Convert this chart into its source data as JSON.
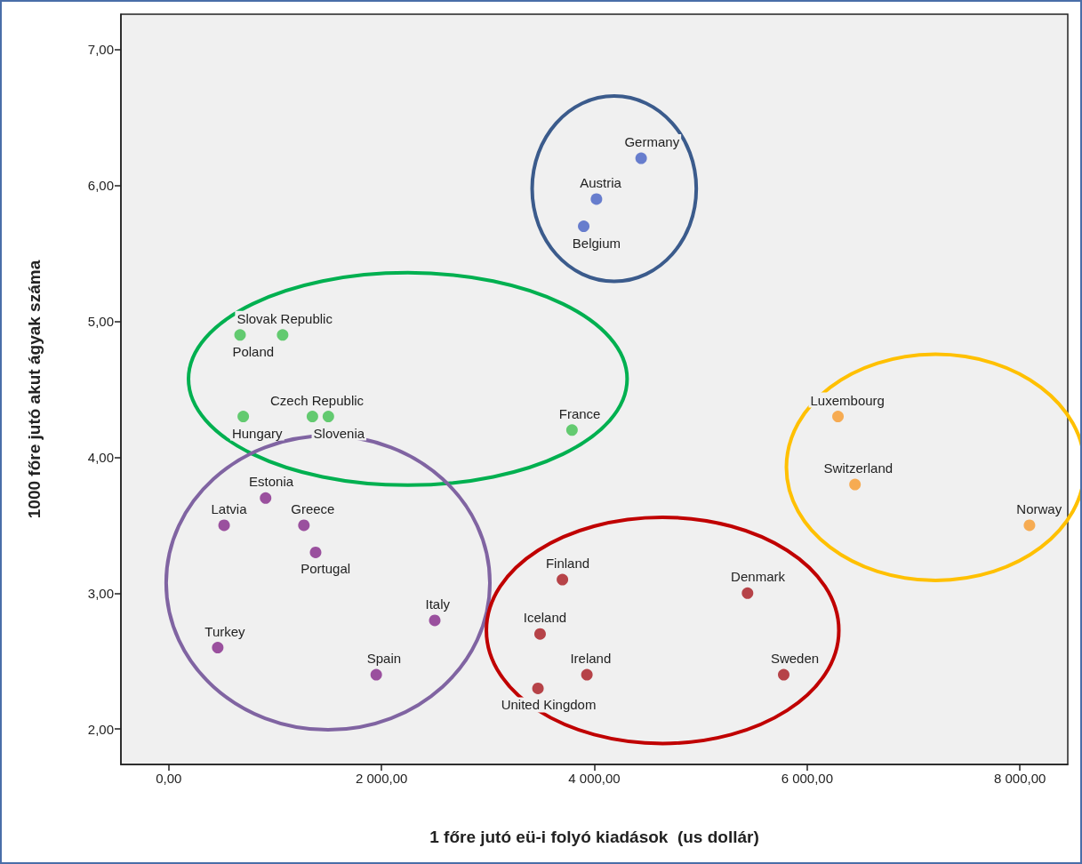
{
  "chart_data": {
    "type": "scatter",
    "xlabel": "1 főre jutó eü-i folyó kiadások  (us dollár)",
    "ylabel": "1000 főre jutó akut ágyak száma",
    "xlim": [
      -450,
      8450
    ],
    "ylim": [
      1.74,
      7.26
    ],
    "xticks": [
      {
        "value": 0,
        "label": "0,00"
      },
      {
        "value": 2000,
        "label": "2 000,00"
      },
      {
        "value": 4000,
        "label": "4 000,00"
      },
      {
        "value": 6000,
        "label": "6 000,00"
      },
      {
        "value": 8000,
        "label": "8 000,00"
      }
    ],
    "yticks": [
      {
        "value": 2,
        "label": "2,00"
      },
      {
        "value": 3,
        "label": "3,00"
      },
      {
        "value": 4,
        "label": "4,00"
      },
      {
        "value": 5,
        "label": "5,00"
      },
      {
        "value": 6,
        "label": "6,00"
      },
      {
        "value": 7,
        "label": "7,00"
      }
    ],
    "grid": false,
    "marker": "circle",
    "series": [
      {
        "color": "#4560c4",
        "x": [
          4440,
          4020,
          3900
        ],
        "values": [
          6.2,
          5.9,
          5.7
        ]
      },
      {
        "color": "#40c050",
        "x": [
          1070,
          670,
          1350,
          700,
          1500,
          3790
        ],
        "values": [
          4.9,
          4.9,
          4.3,
          4.3,
          4.3,
          4.2
        ]
      },
      {
        "color": "#85288a",
        "x": [
          910,
          520,
          1270,
          1380,
          2500,
          460,
          1950
        ],
        "values": [
          3.7,
          3.5,
          3.5,
          3.3,
          2.8,
          2.6,
          2.4
        ]
      },
      {
        "color": "#a8181e",
        "x": [
          3700,
          5440,
          3490,
          3930,
          3470,
          5780
        ],
        "values": [
          3.1,
          3.0,
          2.7,
          2.4,
          2.3,
          2.4
        ]
      },
      {
        "color": "#f89a2a",
        "x": [
          6290,
          6450,
          8090
        ],
        "values": [
          4.3,
          3.8,
          3.5
        ]
      }
    ],
    "annotations": [
      {
        "text": "Germany",
        "x": 4440,
        "y": 6.2
      },
      {
        "text": "Austria",
        "x": 4020,
        "y": 5.9
      },
      {
        "text": "Belgium",
        "x": 3900,
        "y": 5.7
      },
      {
        "text": "Slovak Republic",
        "x": 1070,
        "y": 4.9
      },
      {
        "text": "Poland",
        "x": 670,
        "y": 4.9
      },
      {
        "text": "Czech Republic",
        "x": 1350,
        "y": 4.3
      },
      {
        "text": "Hungary",
        "x": 700,
        "y": 4.3
      },
      {
        "text": "Slovenia",
        "x": 1500,
        "y": 4.3
      },
      {
        "text": "France",
        "x": 3790,
        "y": 4.2
      },
      {
        "text": "Estonia",
        "x": 910,
        "y": 3.7
      },
      {
        "text": "Greece",
        "x": 1270,
        "y": 3.5
      },
      {
        "text": "Latvia",
        "x": 520,
        "y": 3.5
      },
      {
        "text": "Portugal",
        "x": 1380,
        "y": 3.3
      },
      {
        "text": "Italy",
        "x": 2500,
        "y": 2.8
      },
      {
        "text": "Turkey",
        "x": 460,
        "y": 2.6
      },
      {
        "text": "Spain",
        "x": 1950,
        "y": 2.4
      },
      {
        "text": "Finland",
        "x": 3700,
        "y": 3.1
      },
      {
        "text": "Denmark",
        "x": 5440,
        "y": 3.0
      },
      {
        "text": "Iceland",
        "x": 3490,
        "y": 2.7
      },
      {
        "text": "Ireland",
        "x": 3930,
        "y": 2.4
      },
      {
        "text": "United Kingdom",
        "x": 3470,
        "y": 2.3
      },
      {
        "text": "Sweden",
        "x": 5780,
        "y": 2.4
      },
      {
        "text": "Luxembourg",
        "x": 6290,
        "y": 4.3
      },
      {
        "text": "Switzerland",
        "x": 6450,
        "y": 3.8
      },
      {
        "text": "Norway",
        "x": 8090,
        "y": 3.5
      }
    ]
  }
}
